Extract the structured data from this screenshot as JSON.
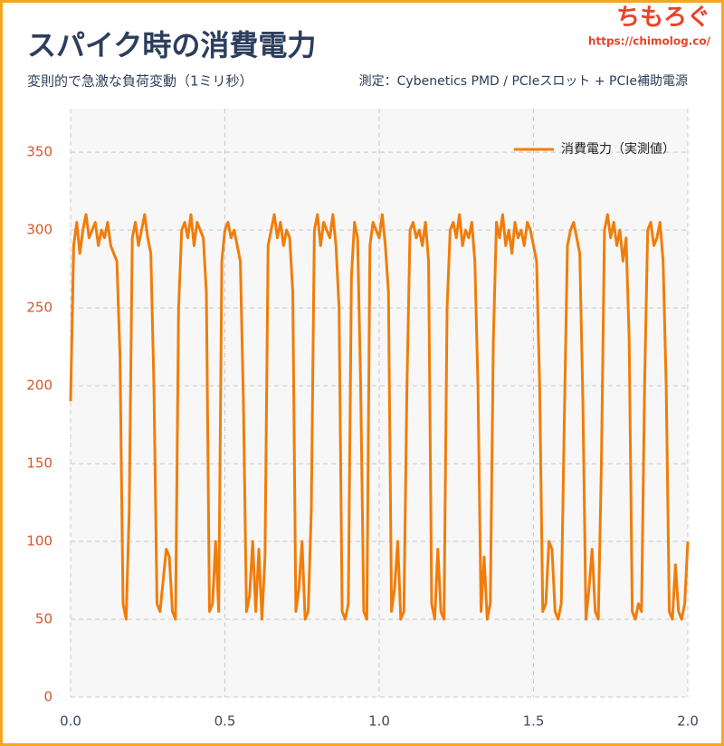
{
  "chart_data": {
    "type": "line",
    "title": "スパイク時の消費電力",
    "subtitle": "変則的で急激な負荷変動（1ミリ秒）",
    "note": "測定：Cybenetics PMD / PCIeスロット + PCIe補助電源",
    "brand": "ちもろぐ",
    "brand_url": "https://chimolog.co/",
    "legend": "upper right",
    "grid": true,
    "xlim": [
      0,
      2
    ],
    "ylim": [
      0,
      378
    ],
    "xticks": [
      {
        "value": 0,
        "label": "0.0"
      },
      {
        "value": 0.5,
        "label": "0.5"
      },
      {
        "value": 1,
        "label": "1.0"
      },
      {
        "value": 1.5,
        "label": "1.5"
      },
      {
        "value": 2,
        "label": "2.0"
      }
    ],
    "yticks": [
      0,
      50,
      100,
      150,
      200,
      250,
      300,
      350
    ],
    "x": [
      0,
      0.01,
      0.02,
      0.03,
      0.04,
      0.05,
      0.06,
      0.07,
      0.08,
      0.09,
      0.1,
      0.11,
      0.12,
      0.13,
      0.14,
      0.15,
      0.16,
      0.17,
      0.18,
      0.19,
      0.2,
      0.21,
      0.22,
      0.23,
      0.24,
      0.25,
      0.26,
      0.27,
      0.28,
      0.29,
      0.3,
      0.31,
      0.32,
      0.33,
      0.34,
      0.35,
      0.36,
      0.37,
      0.38,
      0.39,
      0.4,
      0.41,
      0.42,
      0.43,
      0.44,
      0.45,
      0.46,
      0.47,
      0.48,
      0.49,
      0.5,
      0.51,
      0.52,
      0.53,
      0.54,
      0.55,
      0.56,
      0.57,
      0.58,
      0.59,
      0.6,
      0.61,
      0.62,
      0.63,
      0.64,
      0.65,
      0.66,
      0.67,
      0.68,
      0.69,
      0.7,
      0.71,
      0.72,
      0.73,
      0.74,
      0.75,
      0.76,
      0.77,
      0.78,
      0.79,
      0.8,
      0.81,
      0.82,
      0.83,
      0.84,
      0.85,
      0.86,
      0.87,
      0.88,
      0.89,
      0.9,
      0.91,
      0.92,
      0.93,
      0.94,
      0.95,
      0.96,
      0.97,
      0.98,
      0.99,
      1,
      1.01,
      1.02,
      1.03,
      1.04,
      1.05,
      1.06,
      1.07,
      1.08,
      1.09,
      1.1,
      1.11,
      1.12,
      1.13,
      1.14,
      1.15,
      1.16,
      1.17,
      1.18,
      1.19,
      1.2,
      1.21,
      1.22,
      1.23,
      1.24,
      1.25,
      1.26,
      1.27,
      1.28,
      1.29,
      1.3,
      1.31,
      1.32,
      1.33,
      1.34,
      1.35,
      1.36,
      1.37,
      1.38,
      1.39,
      1.4,
      1.41,
      1.42,
      1.43,
      1.44,
      1.45,
      1.46,
      1.47,
      1.48,
      1.49,
      1.5,
      1.51,
      1.52,
      1.53,
      1.54,
      1.55,
      1.56,
      1.57,
      1.58,
      1.59,
      1.6,
      1.61,
      1.62,
      1.63,
      1.64,
      1.65,
      1.66,
      1.67,
      1.68,
      1.69,
      1.7,
      1.71,
      1.72,
      1.73,
      1.74,
      1.75,
      1.76,
      1.77,
      1.78,
      1.79,
      1.8,
      1.81,
      1.82,
      1.83,
      1.84,
      1.85,
      1.86,
      1.87,
      1.88,
      1.89,
      1.9,
      1.91,
      1.92,
      1.93,
      1.94,
      1.95,
      1.96,
      1.97,
      1.98,
      1.99,
      2
    ],
    "series": [
      {
        "name": "消費電力（実測値）",
        "color": "#f07d0a",
        "values": [
          190,
          290,
          305,
          285,
          300,
          310,
          295,
          300,
          305,
          290,
          300,
          295,
          305,
          290,
          285,
          280,
          220,
          60,
          50,
          120,
          295,
          305,
          290,
          300,
          310,
          295,
          285,
          200,
          60,
          55,
          75,
          95,
          90,
          55,
          50,
          250,
          300,
          305,
          295,
          310,
          290,
          305,
          300,
          295,
          260,
          55,
          60,
          100,
          55,
          280,
          300,
          305,
          295,
          300,
          290,
          280,
          190,
          55,
          65,
          100,
          55,
          95,
          50,
          90,
          290,
          300,
          310,
          295,
          305,
          290,
          300,
          295,
          260,
          55,
          70,
          100,
          50,
          55,
          120,
          300,
          310,
          290,
          305,
          300,
          295,
          310,
          290,
          250,
          55,
          50,
          60,
          270,
          305,
          295,
          200,
          55,
          50,
          290,
          305,
          300,
          295,
          310,
          290,
          260,
          55,
          70,
          100,
          50,
          55,
          200,
          300,
          305,
          295,
          300,
          290,
          305,
          280,
          60,
          50,
          95,
          55,
          50,
          250,
          300,
          305,
          295,
          310,
          290,
          300,
          295,
          305,
          280,
          200,
          55,
          90,
          50,
          60,
          230,
          305,
          295,
          310,
          290,
          300,
          285,
          305,
          295,
          300,
          290,
          305,
          300,
          290,
          280,
          200,
          55,
          60,
          100,
          95,
          55,
          50,
          60,
          180,
          290,
          300,
          305,
          295,
          285,
          190,
          50,
          70,
          95,
          55,
          50,
          150,
          300,
          310,
          295,
          305,
          290,
          300,
          280,
          295,
          230,
          55,
          50,
          60,
          55,
          200,
          300,
          305,
          290,
          295,
          305,
          280,
          200,
          55,
          50,
          85,
          55,
          50,
          60,
          100
        ]
      }
    ]
  }
}
